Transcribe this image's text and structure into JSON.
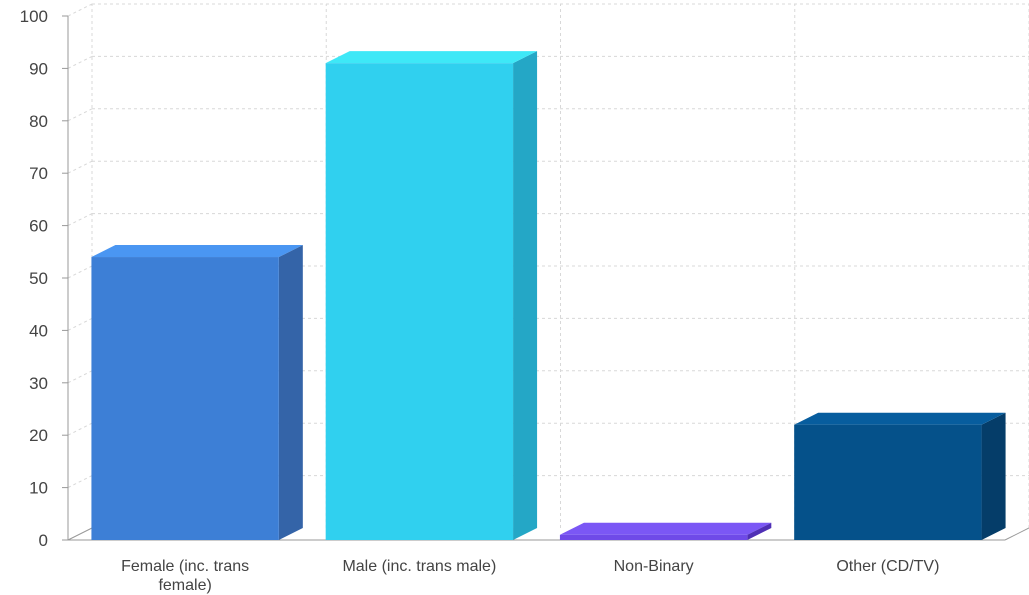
{
  "chart_data": {
    "type": "bar",
    "style": "3d",
    "categories": [
      "Female (inc. trans female)",
      "Male (inc. trans male)",
      "Non-Binary",
      "Other (CD/TV)"
    ],
    "category_label_lines": [
      [
        "Female (inc. trans",
        "female)"
      ],
      [
        "Male (inc. trans male)"
      ],
      [
        "Non-Binary"
      ],
      [
        "Other (CD/TV)"
      ]
    ],
    "values": [
      54,
      91,
      1,
      22
    ],
    "ylim": [
      0,
      100
    ],
    "yticks": [
      0,
      10,
      20,
      30,
      40,
      50,
      60,
      70,
      80,
      90,
      100
    ],
    "grid": true,
    "legend": "none",
    "colors": {
      "front": [
        "#3d7fd6",
        "#30d0ef",
        "#6f4ae8",
        "#05518a"
      ],
      "side": [
        "#3464a8",
        "#24a7c6",
        "#4f2fb5",
        "#053d69"
      ],
      "top": [
        "#4a96f2",
        "#3ee8f7",
        "#7b57f5",
        "#075d9e"
      ],
      "grid": "#d8d8d8",
      "axis": "#999999",
      "text": "#444444"
    }
  }
}
